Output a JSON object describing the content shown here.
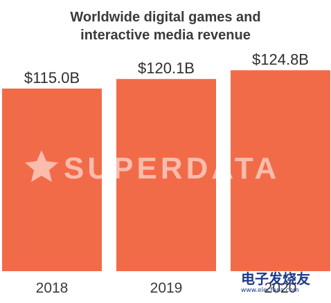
{
  "chart_data": {
    "type": "bar",
    "title_lines": [
      "Worldwide digital games and",
      "interactive media revenue"
    ],
    "categories": [
      "2018",
      "2019",
      "2020"
    ],
    "values": [
      115.0,
      120.1,
      124.8
    ],
    "value_labels": [
      "$115.0B",
      "$120.1B",
      "$124.8B"
    ],
    "unit": "USD billions",
    "bar_color": "#f26b49",
    "grid": false,
    "legend": "none"
  },
  "watermarks": {
    "center": "SUPERDATA",
    "corner_name": "电子发烧友",
    "corner_url": "www.elecfans.com"
  }
}
